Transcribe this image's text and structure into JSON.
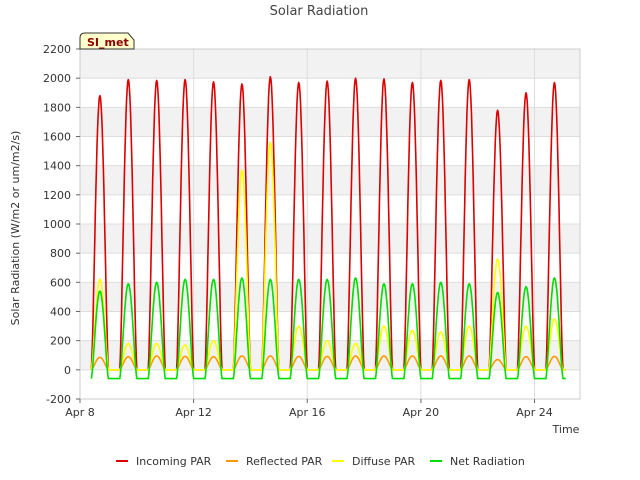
{
  "chart_data": {
    "type": "line",
    "title": "Solar Radiation",
    "xlabel": "Time",
    "ylabel": "Solar Radiation (W/m2 or um/m2/s)",
    "badge": "SI_met",
    "xlim": [
      0,
      17.6
    ],
    "ylim": [
      -200,
      2200
    ],
    "yticks": [
      -200,
      0,
      200,
      400,
      600,
      800,
      1000,
      1200,
      1400,
      1600,
      1800,
      2000,
      2200
    ],
    "xticks": [
      {
        "value": 0,
        "label": "Apr 8"
      },
      {
        "value": 4,
        "label": "Apr 12"
      },
      {
        "value": 8,
        "label": "Apr 16"
      },
      {
        "value": 12,
        "label": "Apr 20"
      },
      {
        "value": 16,
        "label": "Apr 24"
      }
    ],
    "day_offsets": [
      0.7,
      1.7,
      2.7,
      3.7,
      4.7,
      5.7,
      6.7,
      7.7,
      8.7,
      9.7,
      10.7,
      11.7,
      12.7,
      13.7,
      14.7,
      15.7,
      16.7
    ],
    "series": [
      {
        "name": "Incoming PAR",
        "color": "#dd0000",
        "night": 0,
        "daily_peaks": [
          1880,
          1990,
          1985,
          1990,
          1975,
          1960,
          2010,
          1970,
          1980,
          2000,
          1995,
          1970,
          1985,
          1990,
          1780,
          1900,
          1970
        ]
      },
      {
        "name": "Reflected PAR",
        "color": "#ff9900",
        "night": 0,
        "daily_peaks": [
          85,
          90,
          95,
          92,
          90,
          95,
          95,
          92,
          92,
          95,
          95,
          95,
          95,
          95,
          70,
          90,
          92
        ]
      },
      {
        "name": "Diffuse PAR",
        "color": "#ffff00",
        "night": 0,
        "daily_peaks": [
          620,
          180,
          180,
          170,
          200,
          1370,
          1560,
          300,
          200,
          180,
          300,
          270,
          260,
          300,
          760,
          300,
          350
        ]
      },
      {
        "name": "Net Radiation",
        "color": "#00dd00",
        "night": -60,
        "daily_peaks": [
          540,
          590,
          600,
          620,
          620,
          630,
          620,
          620,
          620,
          630,
          590,
          590,
          600,
          590,
          530,
          570,
          630
        ]
      }
    ]
  }
}
